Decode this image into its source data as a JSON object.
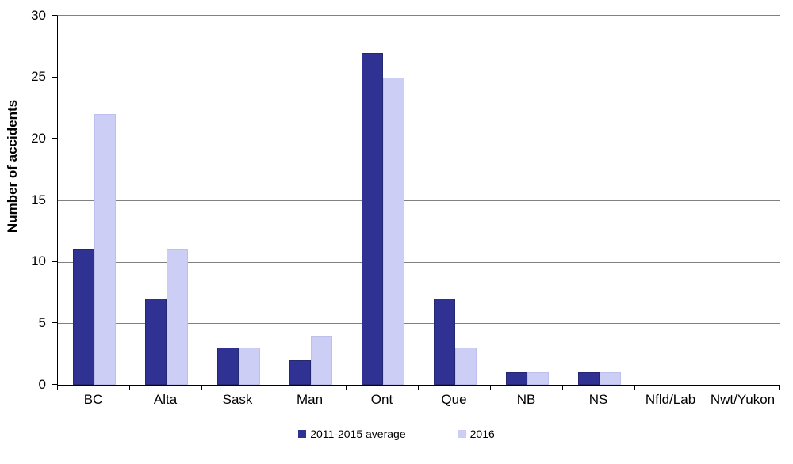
{
  "chart_data": {
    "type": "bar",
    "title": "",
    "xlabel": "",
    "ylabel": "Number of accidents",
    "ylim": [
      0,
      30
    ],
    "yticks": [
      0,
      5,
      10,
      15,
      20,
      25,
      30
    ],
    "grid": "horizontal",
    "gridline_color": "#808080",
    "axis_color": "#000000",
    "legend_position": "bottom",
    "categories": [
      "BC",
      "Alta",
      "Sask",
      "Man",
      "Ont",
      "Que",
      "NB",
      "NS",
      "Nfld/Lab",
      "Nwt/Yukon"
    ],
    "series": [
      {
        "name": "2011-2015 average",
        "color": "#2F3292",
        "border_color": "#26286F",
        "values": [
          11,
          7,
          3,
          2,
          27,
          7,
          1,
          1,
          0,
          0
        ]
      },
      {
        "name": "2016",
        "color": "#CCCEF6",
        "border_color": "#BDBFEC",
        "values": [
          22,
          11,
          3,
          4,
          25,
          3,
          1,
          1,
          0,
          0
        ]
      }
    ]
  }
}
